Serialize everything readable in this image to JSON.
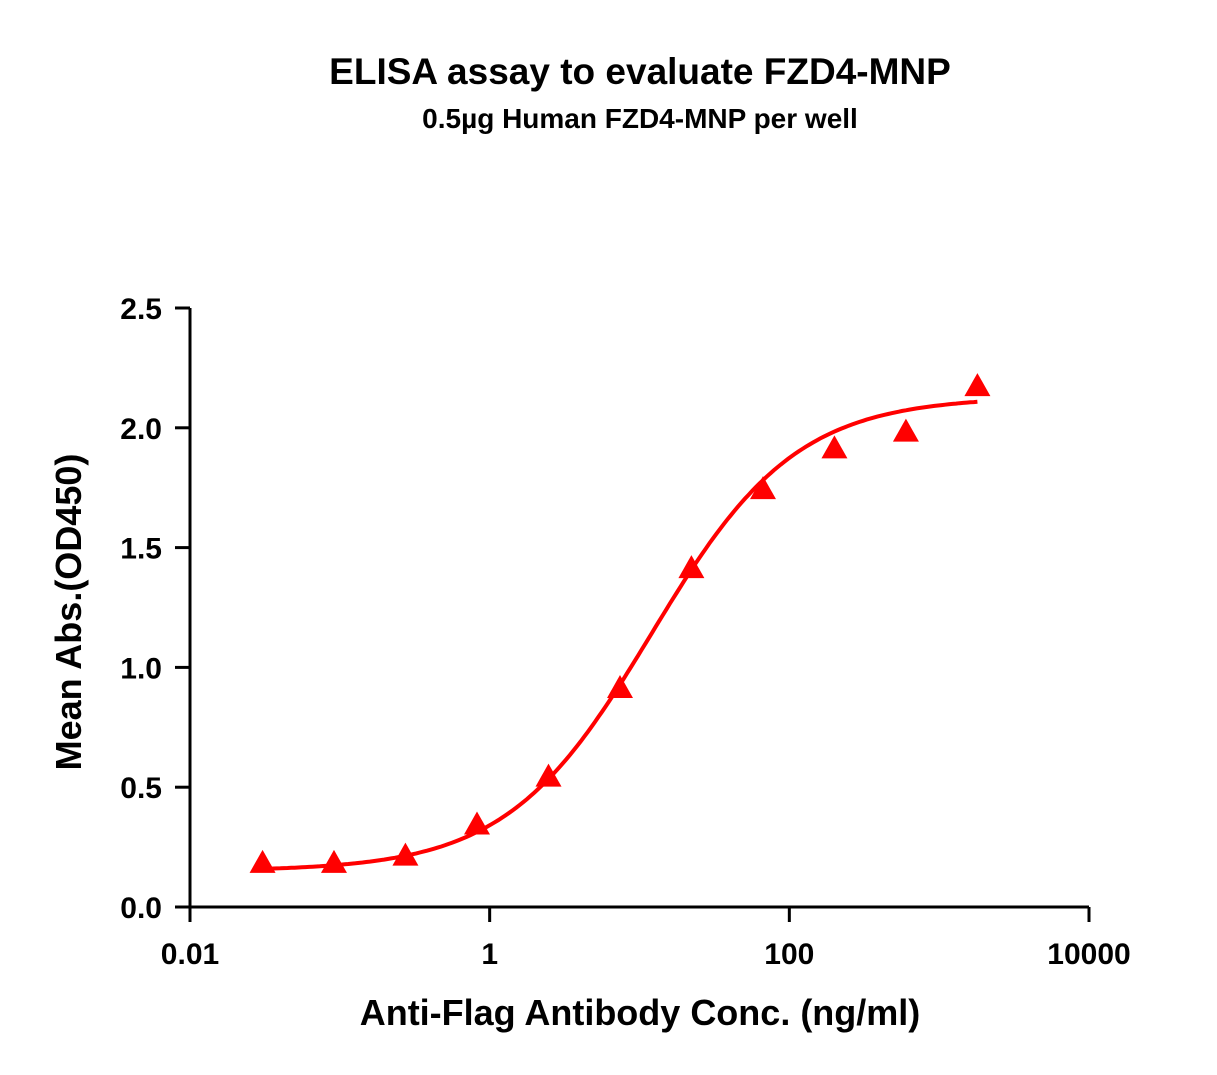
{
  "chart_data": {
    "type": "scatter",
    "title": "ELISA assay to evaluate FZD4-MNP",
    "subtitle": "0.5µg Human FZD4-MNP per well",
    "xlabel": "Anti-Flag Antibody Conc. (ng/ml)",
    "ylabel": "Mean Abs.(OD450)",
    "xscale": "log",
    "xlim": [
      0.01,
      10000
    ],
    "ylim": [
      0,
      2.5
    ],
    "xticks": [
      "0.01",
      "1",
      "100",
      "10000"
    ],
    "xtick_values": [
      0.01,
      1,
      100,
      10000
    ],
    "yticks": [
      "0.0",
      "0.5",
      "1.0",
      "1.5",
      "2.0",
      "2.5"
    ],
    "ytick_values": [
      0,
      0.5,
      1.0,
      1.5,
      2.0,
      2.5
    ],
    "grid": false,
    "marker": "triangle",
    "color": "#ff0000",
    "series": [
      {
        "x": [
          0.0305,
          0.0914,
          0.274,
          0.823,
          2.47,
          7.41,
          22.2,
          66.7,
          200,
          600,
          1800
        ],
        "y": [
          0.18,
          0.18,
          0.21,
          0.34,
          0.54,
          0.91,
          1.41,
          1.74,
          1.91,
          1.98,
          2.17
        ]
      }
    ],
    "fit_curve": {
      "model": "4PL",
      "bottom": 0.15,
      "top": 2.13,
      "ec50": 12,
      "hill": 0.9,
      "x_range": [
        0.0305,
        1800
      ]
    }
  }
}
